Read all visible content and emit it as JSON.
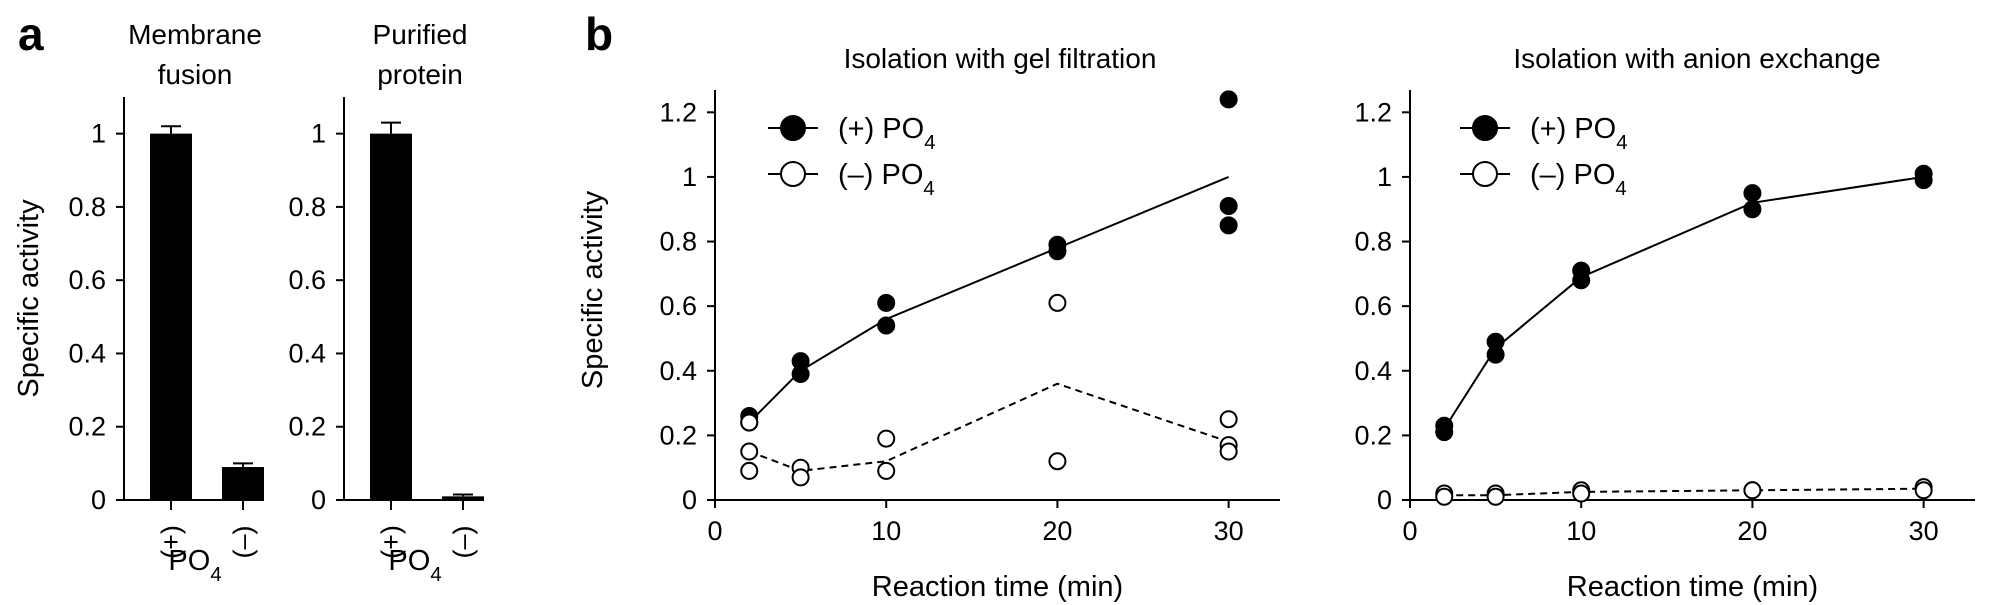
{
  "panel_labels": {
    "a": "a",
    "b": "b"
  },
  "chart_data": [
    {
      "type": "bar",
      "panel": "a",
      "title_line1": "Membrane",
      "title_line2": "fusion",
      "ylabel": "Specific activity",
      "ylim": [
        0,
        1.1
      ],
      "yticks": [
        "0",
        "0.2",
        "0.4",
        "0.6",
        "0.8",
        "1"
      ],
      "categories": [
        "(+)",
        "(–)"
      ],
      "values": [
        1.0,
        0.09
      ],
      "errors": [
        0.02,
        0.01
      ],
      "xgroup_label": "PO",
      "xgroup_sub": "4"
    },
    {
      "type": "bar",
      "panel": "a",
      "title_line1": "Purified",
      "title_line2": "protein",
      "ylabel": "",
      "ylim": [
        0,
        1.1
      ],
      "yticks": [
        "0",
        "0.2",
        "0.4",
        "0.6",
        "0.8",
        "1"
      ],
      "categories": [
        "(+)",
        "(–)"
      ],
      "values": [
        1.0,
        0.01
      ],
      "errors": [
        0.03,
        0.005
      ],
      "xgroup_label": "PO",
      "xgroup_sub": "4"
    },
    {
      "type": "scatter",
      "panel": "b",
      "title": "Isolation with gel filtration",
      "xlabel": "Reaction time (min)",
      "ylabel": "Specific activity",
      "xlim": [
        0,
        33
      ],
      "ylim": [
        0,
        1.3
      ],
      "xticks": [
        "0",
        "10",
        "20",
        "30"
      ],
      "yticks": [
        "0",
        "0.2",
        "0.4",
        "0.6",
        "0.8",
        "1",
        "1.2"
      ],
      "legend": [
        {
          "label": "(+) PO",
          "sub": "4",
          "marker": "filled"
        },
        {
          "label": "(–) PO",
          "sub": "4",
          "marker": "open"
        }
      ],
      "series": [
        {
          "name": "(+) PO4",
          "marker": "filled",
          "line": "solid",
          "points": [
            [
              2,
              0.26
            ],
            [
              2,
              0.24
            ],
            [
              5,
              0.43
            ],
            [
              5,
              0.39
            ],
            [
              10,
              0.61
            ],
            [
              10,
              0.54
            ],
            [
              20,
              0.79
            ],
            [
              20,
              0.77
            ],
            [
              30,
              1.24
            ],
            [
              30,
              0.91
            ],
            [
              30,
              0.85
            ]
          ],
          "fit": [
            [
              2,
              0.24
            ],
            [
              5,
              0.4
            ],
            [
              10,
              0.56
            ],
            [
              20,
              0.78
            ],
            [
              30,
              1.0
            ]
          ]
        },
        {
          "name": "(–) PO4",
          "marker": "open",
          "line": "dashed",
          "points": [
            [
              2,
              0.24
            ],
            [
              2,
              0.15
            ],
            [
              2,
              0.09
            ],
            [
              5,
              0.1
            ],
            [
              5,
              0.07
            ],
            [
              10,
              0.19
            ],
            [
              10,
              0.09
            ],
            [
              20,
              0.61
            ],
            [
              20,
              0.12
            ],
            [
              30,
              0.25
            ],
            [
              30,
              0.17
            ],
            [
              30,
              0.15
            ]
          ],
          "fit": [
            [
              2,
              0.15
            ],
            [
              5,
              0.09
            ],
            [
              10,
              0.12
            ],
            [
              20,
              0.36
            ],
            [
              30,
              0.18
            ]
          ]
        }
      ]
    },
    {
      "type": "scatter",
      "panel": "b",
      "title": "Isolation with anion exchange",
      "xlabel": "Reaction time (min)",
      "ylabel": "",
      "xlim": [
        0,
        33
      ],
      "ylim": [
        0,
        1.3
      ],
      "xticks": [
        "0",
        "10",
        "20",
        "30"
      ],
      "yticks": [
        "0",
        "0.2",
        "0.4",
        "0.6",
        "0.8",
        "1",
        "1.2"
      ],
      "legend": [
        {
          "label": "(+) PO",
          "sub": "4",
          "marker": "filled"
        },
        {
          "label": "(–) PO",
          "sub": "4",
          "marker": "open"
        }
      ],
      "series": [
        {
          "name": "(+) PO4",
          "marker": "filled",
          "line": "solid",
          "points": [
            [
              2,
              0.23
            ],
            [
              2,
              0.21
            ],
            [
              5,
              0.49
            ],
            [
              5,
              0.45
            ],
            [
              10,
              0.71
            ],
            [
              10,
              0.68
            ],
            [
              20,
              0.95
            ],
            [
              20,
              0.9
            ],
            [
              30,
              1.01
            ],
            [
              30,
              0.99
            ]
          ],
          "fit": [
            [
              2,
              0.22
            ],
            [
              5,
              0.47
            ],
            [
              10,
              0.69
            ],
            [
              20,
              0.92
            ],
            [
              30,
              1.0
            ]
          ]
        },
        {
          "name": "(–) PO4",
          "marker": "open",
          "line": "dashed",
          "points": [
            [
              2,
              0.02
            ],
            [
              2,
              0.01
            ],
            [
              5,
              0.02
            ],
            [
              5,
              0.01
            ],
            [
              10,
              0.03
            ],
            [
              10,
              0.02
            ],
            [
              20,
              0.03
            ],
            [
              20,
              0.03
            ],
            [
              30,
              0.04
            ],
            [
              30,
              0.03
            ]
          ],
          "fit": [
            [
              2,
              0.015
            ],
            [
              5,
              0.015
            ],
            [
              10,
              0.025
            ],
            [
              20,
              0.03
            ],
            [
              30,
              0.035
            ]
          ]
        }
      ]
    }
  ]
}
